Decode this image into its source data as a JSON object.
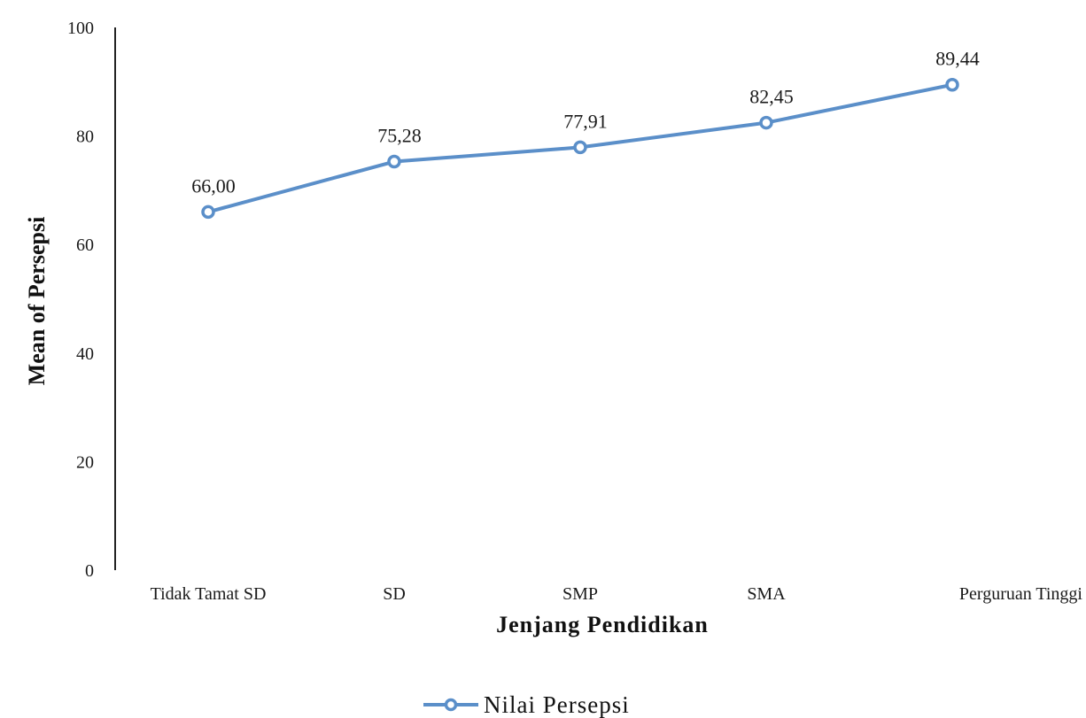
{
  "chart_data": {
    "type": "line",
    "categories": [
      "Tidak Tamat SD",
      "SD",
      "SMP",
      "SMA",
      "Perguruan Tinggi"
    ],
    "series": [
      {
        "name": "Nilai Persepsi",
        "values": [
          66.0,
          75.28,
          77.91,
          82.45,
          89.44
        ],
        "labels": [
          "66,00",
          "75,28",
          "77,91",
          "82,45",
          "89,44"
        ],
        "color": "#5b8fc9"
      }
    ],
    "xlabel": "Jenjang Pendidikan",
    "ylabel": "Mean of Persepsi",
    "ylim": [
      0,
      100
    ],
    "yticks": [
      0,
      20,
      40,
      60,
      80,
      100
    ],
    "grid": false,
    "legend_position": "bottom"
  }
}
